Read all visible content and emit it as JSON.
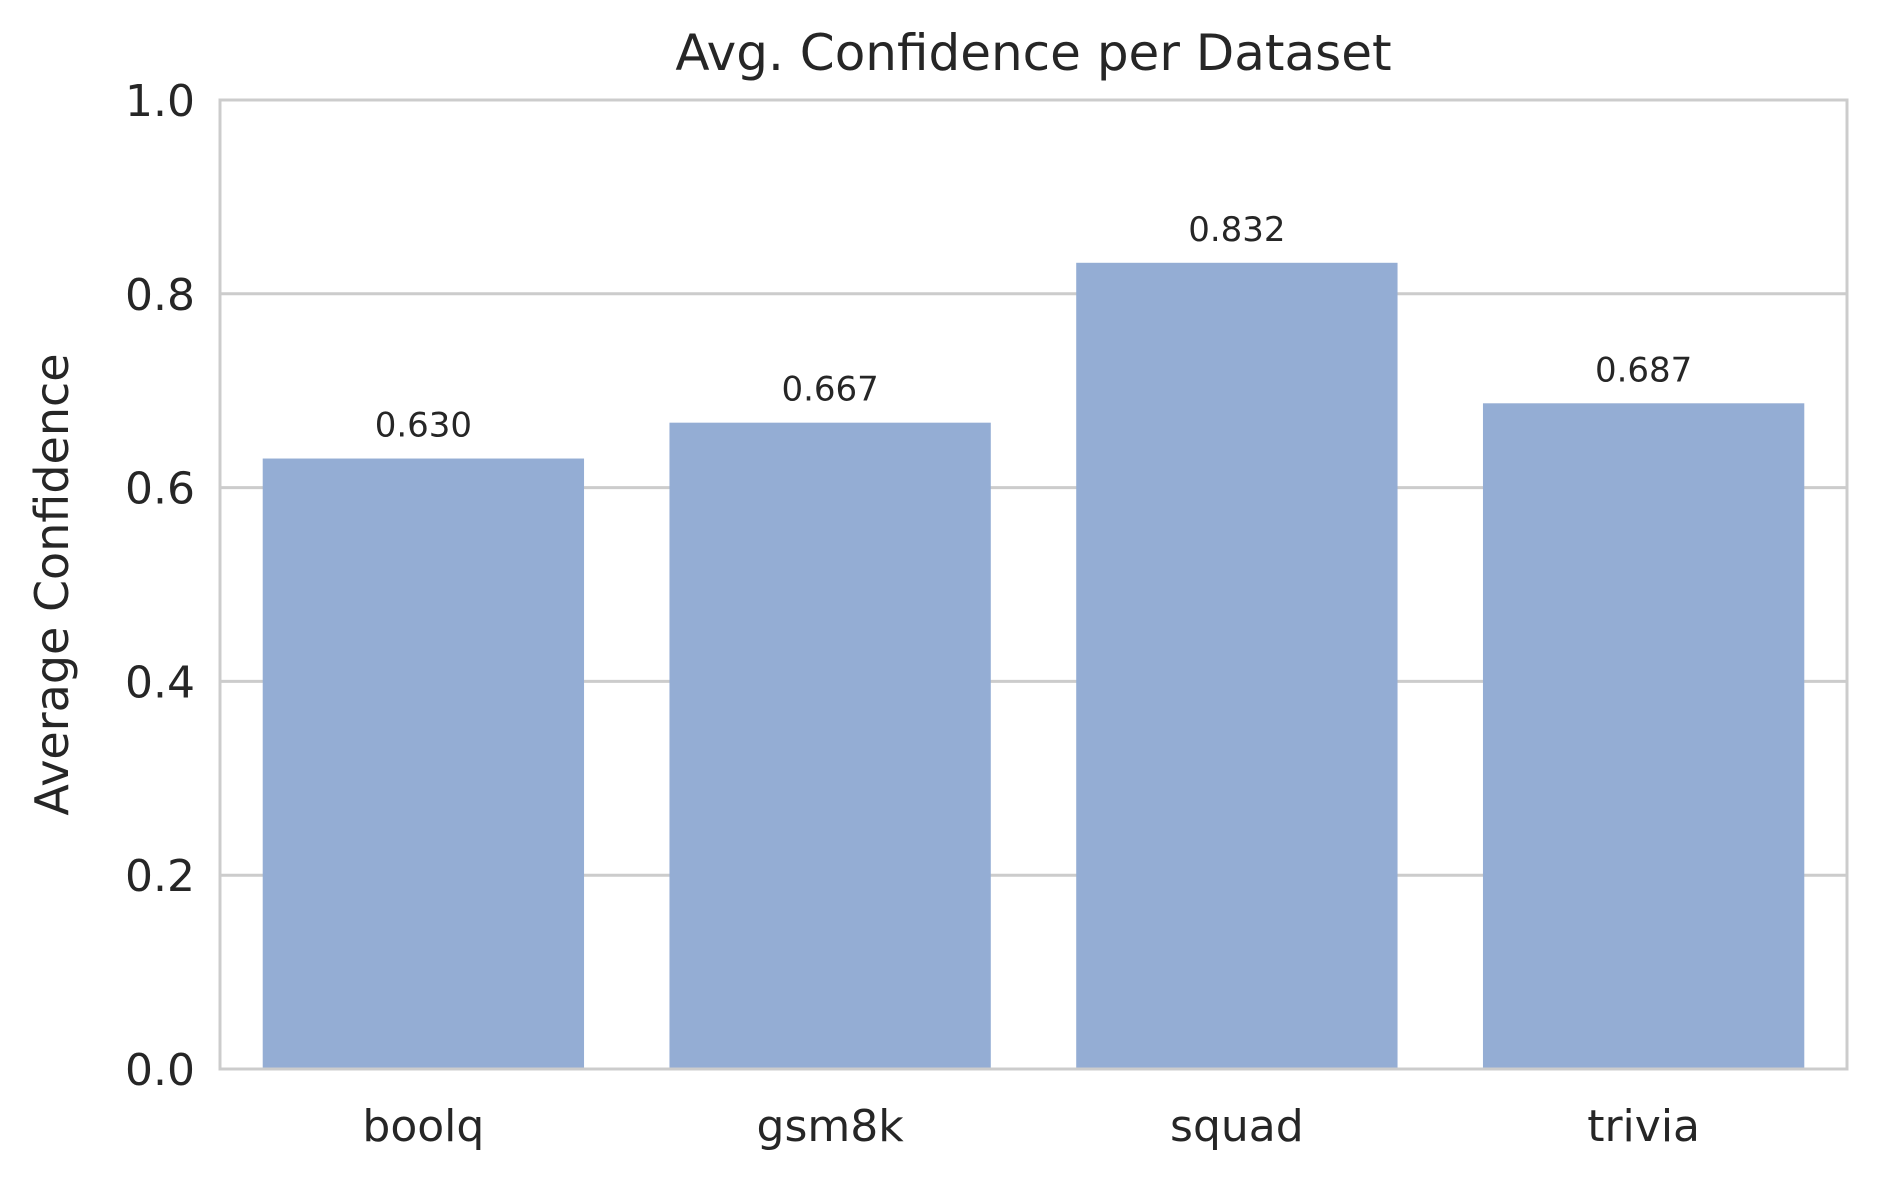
{
  "chart_data": {
    "type": "bar",
    "title": "Avg. Confidence per Dataset",
    "xlabel": "",
    "ylabel": "Average Confidence",
    "categories": [
      "boolq",
      "gsm8k",
      "squad",
      "trivia"
    ],
    "values": [
      0.63,
      0.667,
      0.832,
      0.687
    ],
    "value_labels": [
      "0.630",
      "0.667",
      "0.832",
      "0.687"
    ],
    "ylim": [
      0,
      1.0
    ],
    "yticks": [
      0.0,
      0.2,
      0.4,
      0.6,
      0.8,
      1.0
    ],
    "ytick_labels": [
      "0.0",
      "0.2",
      "0.4",
      "0.6",
      "0.8",
      "1.0"
    ],
    "grid": true,
    "bar_color": "#94add4"
  }
}
